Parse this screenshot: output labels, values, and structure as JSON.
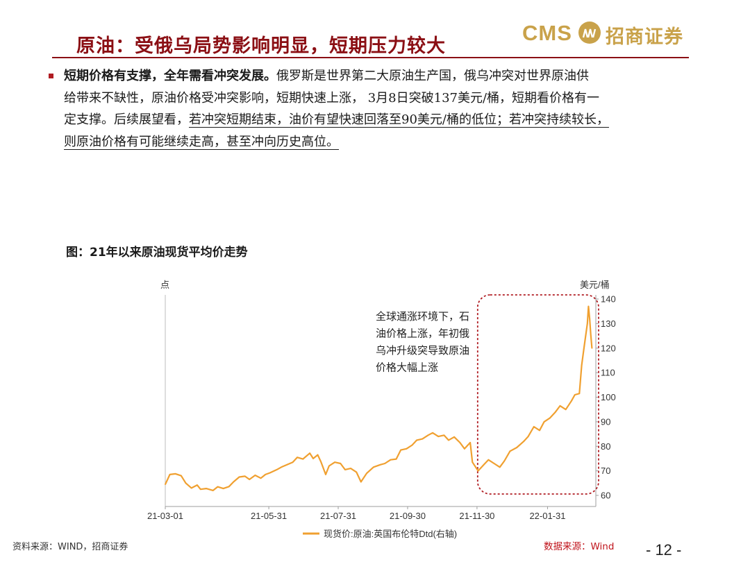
{
  "slide": {
    "title": "原油：受俄乌局势影响明显，短期压力较大",
    "logo_en": "CMS",
    "logo_cn": "招商证券"
  },
  "bullet": {
    "lead": "短期价格有支撑，全年需看冲突发展。",
    "line1_rest": "俄罗斯是世界第二大原油生产国，俄乌冲突对世界原油供",
    "line2": "给带来不缺性，原油价格受冲突影响，短期快速上涨， 3月8日突破137美元/桶，短期看价格有一",
    "line3_plain": "定支撑。后续展望看，",
    "line3_underlined": "若冲突短期结束，油价有望快速回落至90美元/桶的低位；若冲突持续较长，",
    "line4_underlined": "则原油价格有可能继续走高，甚至冲向历史高位。"
  },
  "figure": {
    "caption": "图：21年以来原油现货平均价走势"
  },
  "chart_data": {
    "type": "line",
    "left_axis_label": "点",
    "right_axis_label": "美元/桶",
    "x_ticks": [
      "21-03-01",
      "21-05-31",
      "21-07-31",
      "21-09-30",
      "21-11-30",
      "22-01-31"
    ],
    "ylim": [
      60,
      140
    ],
    "y_ticks": [
      60,
      70,
      80,
      90,
      100,
      110,
      120,
      130,
      140
    ],
    "grid": false,
    "legend_position": "bottom-center",
    "series": [
      {
        "name": "现货价:原油:英国布伦特Dtd(右轴)",
        "color": "#f0a030",
        "points": [
          [
            "2021-03-01",
            64.5
          ],
          [
            "2021-03-05",
            68.5
          ],
          [
            "2021-03-10",
            68.8
          ],
          [
            "2021-03-15",
            68.0
          ],
          [
            "2021-03-19",
            65.0
          ],
          [
            "2021-03-24",
            63.0
          ],
          [
            "2021-03-29",
            64.2
          ],
          [
            "2021-04-01",
            62.5
          ],
          [
            "2021-04-06",
            62.8
          ],
          [
            "2021-04-12",
            62.0
          ],
          [
            "2021-04-16",
            63.5
          ],
          [
            "2021-04-21",
            62.8
          ],
          [
            "2021-04-26",
            63.6
          ],
          [
            "2021-04-30",
            65.5
          ],
          [
            "2021-05-05",
            67.5
          ],
          [
            "2021-05-10",
            67.8
          ],
          [
            "2021-05-14",
            66.5
          ],
          [
            "2021-05-19",
            68.2
          ],
          [
            "2021-05-24",
            67.0
          ],
          [
            "2021-05-28",
            68.5
          ],
          [
            "2021-06-01",
            69.2
          ],
          [
            "2021-06-07",
            70.5
          ],
          [
            "2021-06-11",
            71.5
          ],
          [
            "2021-06-16",
            72.5
          ],
          [
            "2021-06-21",
            73.5
          ],
          [
            "2021-06-25",
            75.5
          ],
          [
            "2021-06-30",
            74.8
          ],
          [
            "2021-07-06",
            77.2
          ],
          [
            "2021-07-09",
            75.0
          ],
          [
            "2021-07-13",
            76.5
          ],
          [
            "2021-07-16",
            73.5
          ],
          [
            "2021-07-20",
            68.5
          ],
          [
            "2021-07-23",
            72.0
          ],
          [
            "2021-07-28",
            73.5
          ],
          [
            "2021-08-02",
            73.0
          ],
          [
            "2021-08-06",
            70.5
          ],
          [
            "2021-08-11",
            71.0
          ],
          [
            "2021-08-16",
            69.5
          ],
          [
            "2021-08-20",
            65.5
          ],
          [
            "2021-08-25",
            69.0
          ],
          [
            "2021-08-31",
            71.5
          ],
          [
            "2021-09-06",
            72.5
          ],
          [
            "2021-09-10",
            73.0
          ],
          [
            "2021-09-15",
            74.5
          ],
          [
            "2021-09-20",
            74.8
          ],
          [
            "2021-09-24",
            78.5
          ],
          [
            "2021-09-29",
            79.0
          ],
          [
            "2021-10-04",
            80.5
          ],
          [
            "2021-10-08",
            82.5
          ],
          [
            "2021-10-13",
            83.0
          ],
          [
            "2021-10-18",
            84.5
          ],
          [
            "2021-10-22",
            85.5
          ],
          [
            "2021-10-27",
            84.0
          ],
          [
            "2021-11-01",
            84.5
          ],
          [
            "2021-11-05",
            82.5
          ],
          [
            "2021-11-10",
            83.8
          ],
          [
            "2021-11-15",
            81.5
          ],
          [
            "2021-11-19",
            79.0
          ],
          [
            "2021-11-24",
            81.5
          ],
          [
            "2021-11-26",
            73.5
          ],
          [
            "2021-12-01",
            70.0
          ],
          [
            "2021-12-06",
            72.5
          ],
          [
            "2021-12-10",
            74.5
          ],
          [
            "2021-12-15",
            73.0
          ],
          [
            "2021-12-20",
            71.5
          ],
          [
            "2021-12-24",
            74.0
          ],
          [
            "2021-12-29",
            78.0
          ],
          [
            "2022-01-04",
            79.5
          ],
          [
            "2022-01-10",
            82.0
          ],
          [
            "2022-01-14",
            84.0
          ],
          [
            "2022-01-19",
            88.0
          ],
          [
            "2022-01-24",
            86.5
          ],
          [
            "2022-01-28",
            90.0
          ],
          [
            "2022-02-02",
            91.5
          ],
          [
            "2022-02-07",
            94.0
          ],
          [
            "2022-02-11",
            96.5
          ],
          [
            "2022-02-16",
            95.0
          ],
          [
            "2022-02-21",
            98.5
          ],
          [
            "2022-02-24",
            101.0
          ],
          [
            "2022-02-28",
            101.5
          ],
          [
            "2022-03-02",
            113.0
          ],
          [
            "2022-03-04",
            120.0
          ],
          [
            "2022-03-07",
            130.0
          ],
          [
            "2022-03-08",
            137.0
          ],
          [
            "2022-03-09",
            132.0
          ],
          [
            "2022-03-10",
            125.5
          ],
          [
            "2022-03-11",
            120.0
          ]
        ]
      }
    ],
    "highlight_region": {
      "start": "2021-12-03",
      "end": "2022-03-11",
      "annotation": [
        "全球通涨环境下，石",
        "油价格上涨，年初俄",
        "乌冲升级突导致原油",
        "价格大幅上涨"
      ]
    }
  },
  "footer": {
    "source_left": "资料来源：WIND，招商证券",
    "source_right": "数据来源：Wind",
    "page": "- 12 -"
  },
  "colors": {
    "title_red": "#8b0f14",
    "gold": "#c9a24a",
    "line_orange": "#f0a030",
    "highlight_red": "#b01c22"
  }
}
